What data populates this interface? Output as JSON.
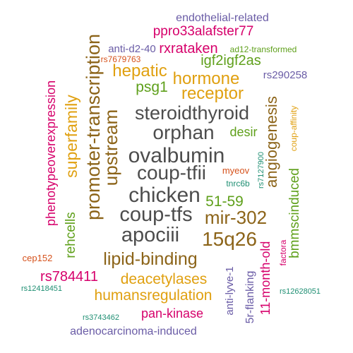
{
  "word_cloud": {
    "palette": {
      "gray": "#4d4d4d",
      "orange": "#e0a010",
      "brown": "#8c6419",
      "magenta": "#d6006b",
      "green": "#5fa01b",
      "purple": "#6a5ca6",
      "teal": "#1f8f73",
      "rust": "#d6521c"
    },
    "words": [
      {
        "text": "endothelial-related",
        "color": "purple"
      },
      {
        "text": "ppro33alafster77",
        "color": "magenta"
      },
      {
        "text": "anti-d2-40",
        "color": "purple"
      },
      {
        "text": "rxrataken",
        "color": "magenta"
      },
      {
        "text": "ad12-transformed",
        "color": "green"
      },
      {
        "text": "rs7679763",
        "color": "rust"
      },
      {
        "text": "igf2igf2as",
        "color": "green"
      },
      {
        "text": "promoter-transcription",
        "color": "brown"
      },
      {
        "text": "hepatic",
        "color": "orange"
      },
      {
        "text": "hormone",
        "color": "orange"
      },
      {
        "text": "rs290258",
        "color": "purple"
      },
      {
        "text": "psg1",
        "color": "green"
      },
      {
        "text": "receptor",
        "color": "orange"
      },
      {
        "text": "upstream",
        "color": "brown"
      },
      {
        "text": "superfamily",
        "color": "orange"
      },
      {
        "text": "phenotypeoverexpression",
        "color": "magenta"
      },
      {
        "text": "steroidthyroid",
        "color": "gray"
      },
      {
        "text": "angiogenesis",
        "color": "brown"
      },
      {
        "text": "coup-affinity",
        "color": "orange"
      },
      {
        "text": "orphan",
        "color": "gray"
      },
      {
        "text": "desir",
        "color": "green"
      },
      {
        "text": "ovalbumin",
        "color": "gray"
      },
      {
        "text": "rs7127900",
        "color": "teal"
      },
      {
        "text": "coup-tfii",
        "color": "gray"
      },
      {
        "text": "myeov",
        "color": "rust"
      },
      {
        "text": "tnrc6b",
        "color": "teal"
      },
      {
        "text": "bmmscinduced",
        "color": "green"
      },
      {
        "text": "rehcells",
        "color": "green"
      },
      {
        "text": "chicken",
        "color": "gray"
      },
      {
        "text": "51-59",
        "color": "green"
      },
      {
        "text": "coup-tfs",
        "color": "gray"
      },
      {
        "text": "mir-302",
        "color": "brown"
      },
      {
        "text": "apociii",
        "color": "gray"
      },
      {
        "text": "15q26",
        "color": "brown"
      },
      {
        "text": "11-month-old",
        "color": "magenta"
      },
      {
        "text": "factora",
        "color": "magenta"
      },
      {
        "text": "cep152",
        "color": "rust"
      },
      {
        "text": "lipid-binding",
        "color": "brown"
      },
      {
        "text": "anti-lyve-1",
        "color": "purple"
      },
      {
        "text": "rs784411",
        "color": "magenta"
      },
      {
        "text": "deacetylases",
        "color": "orange"
      },
      {
        "text": "5r-flanking",
        "color": "purple"
      },
      {
        "text": "rs12418451",
        "color": "teal"
      },
      {
        "text": "humansregulation",
        "color": "orange"
      },
      {
        "text": "rs12628051",
        "color": "teal"
      },
      {
        "text": "rs3743462",
        "color": "teal"
      },
      {
        "text": "pan-kinase",
        "color": "magenta"
      },
      {
        "text": "adenocarcinoma-induced",
        "color": "purple"
      }
    ]
  }
}
